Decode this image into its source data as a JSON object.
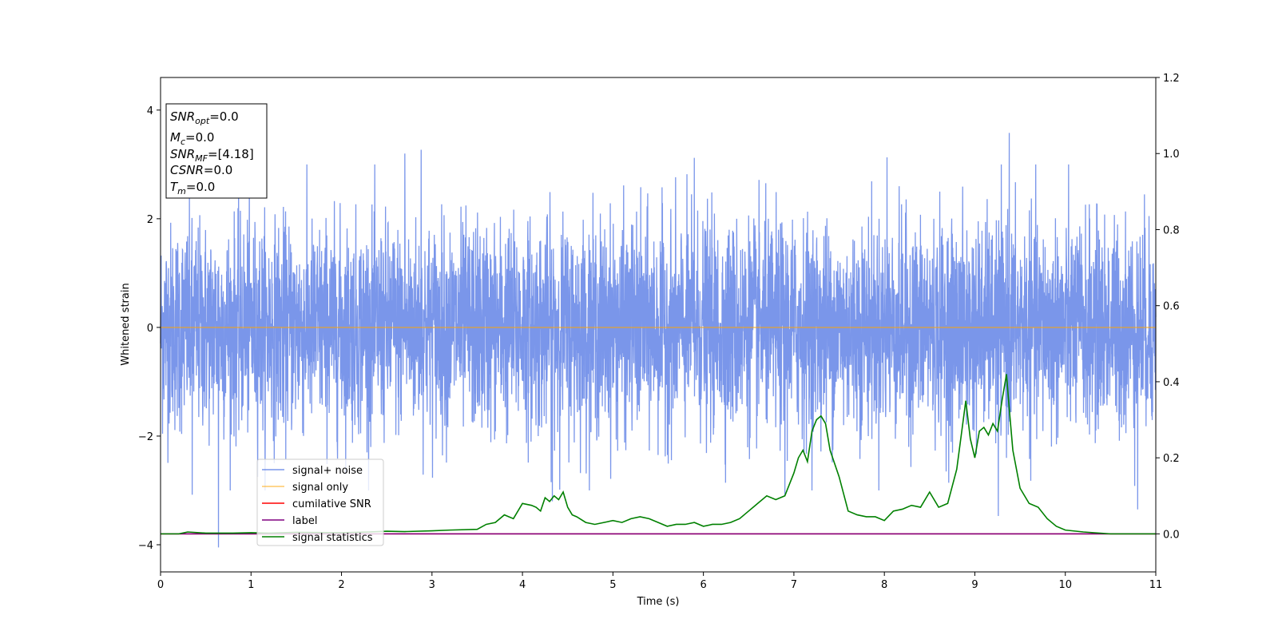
{
  "chart_data": {
    "type": "line",
    "xlabel": "Time (s)",
    "ylabel": "Whitened strain",
    "xlim": [
      0,
      11
    ],
    "ylim": [
      -4.5,
      4.6
    ],
    "y2lim": [
      -0.1,
      1.2
    ],
    "x_ticks": [
      "0",
      "1",
      "2",
      "3",
      "4",
      "5",
      "6",
      "7",
      "8",
      "9",
      "10",
      "11"
    ],
    "y_ticks": [
      "−4",
      "−2",
      "0",
      "2",
      "4"
    ],
    "y2_ticks": [
      "0.0",
      "0.2",
      "0.4",
      "0.6",
      "0.8",
      "1.0",
      "1.2"
    ],
    "y_tick_values": [
      -4,
      -2,
      0,
      2,
      4
    ],
    "y2_tick_values": [
      0.0,
      0.2,
      0.4,
      0.6,
      0.8,
      1.0,
      1.2
    ],
    "grid": false,
    "legend_position": "lower-left",
    "annotation": {
      "lines": [
        {
          "var": "SNR",
          "sub": "opt",
          "value": "=0.0"
        },
        {
          "var": "M",
          "sub": "c",
          "value": "=0.0"
        },
        {
          "var": "SNR",
          "sub": "MF",
          "value": "=[4.18]"
        },
        {
          "var": "CSNR",
          "sub": "",
          "value": "=0.0"
        },
        {
          "var": "T",
          "sub": "m",
          "value": "=0.0"
        }
      ]
    },
    "series": [
      {
        "name": "signal+ noise",
        "axis": "left",
        "color": "#4169e1",
        "description_values": {
          "envelope_min": -4.05,
          "envelope_max": 3.58,
          "typical_abs": 1.3
        },
        "spikes": [
          [
            0.64,
            -4.05
          ],
          [
            9.38,
            3.58
          ],
          [
            4.33,
            -3.2
          ],
          [
            9.26,
            -3.47
          ],
          [
            2.7,
            3.2
          ],
          [
            2.88,
            3.27
          ],
          [
            5.9,
            3.12
          ],
          [
            8.03,
            3.13
          ],
          [
            0.35,
            -3.08
          ],
          [
            10.8,
            -3.35
          ],
          [
            6.9,
            -3.08
          ]
        ]
      },
      {
        "name": "signal only",
        "axis": "left",
        "color": "#ffa500",
        "x": [
          0,
          11
        ],
        "values": [
          0,
          0
        ]
      },
      {
        "name": "cumilative SNR",
        "axis": "right",
        "color": "#ff0000",
        "x": [
          0,
          11
        ],
        "values": [
          0,
          0
        ]
      },
      {
        "name": "label",
        "axis": "right",
        "color": "#800080",
        "x": [
          0,
          11
        ],
        "values": [
          0,
          0
        ]
      },
      {
        "name": "signal statistics",
        "axis": "right",
        "color": "#008000",
        "x": [
          0,
          0.2,
          0.3,
          0.5,
          0.8,
          1.0,
          1.2,
          1.5,
          2.0,
          2.3,
          2.5,
          2.7,
          3.0,
          3.2,
          3.5,
          3.6,
          3.7,
          3.8,
          3.9,
          4.0,
          4.1,
          4.15,
          4.2,
          4.25,
          4.3,
          4.35,
          4.4,
          4.45,
          4.5,
          4.55,
          4.6,
          4.7,
          4.8,
          5.0,
          5.1,
          5.2,
          5.3,
          5.4,
          5.5,
          5.6,
          5.7,
          5.8,
          5.9,
          6.0,
          6.1,
          6.2,
          6.3,
          6.4,
          6.5,
          6.6,
          6.7,
          6.8,
          6.9,
          7.0,
          7.05,
          7.1,
          7.15,
          7.2,
          7.25,
          7.3,
          7.35,
          7.4,
          7.5,
          7.6,
          7.7,
          7.8,
          7.9,
          8.0,
          8.1,
          8.2,
          8.3,
          8.4,
          8.5,
          8.6,
          8.7,
          8.8,
          8.9,
          8.95,
          9.0,
          9.05,
          9.1,
          9.15,
          9.2,
          9.25,
          9.3,
          9.35,
          9.38,
          9.42,
          9.5,
          9.6,
          9.7,
          9.8,
          9.9,
          10.0,
          10.2,
          10.5,
          11.0
        ],
        "values": [
          0.0,
          0.0,
          0.005,
          0.002,
          0.002,
          0.003,
          0.002,
          0.004,
          0.003,
          0.005,
          0.007,
          0.006,
          0.008,
          0.01,
          0.012,
          0.025,
          0.03,
          0.05,
          0.04,
          0.08,
          0.075,
          0.07,
          0.06,
          0.095,
          0.085,
          0.1,
          0.09,
          0.11,
          0.07,
          0.05,
          0.045,
          0.03,
          0.025,
          0.035,
          0.03,
          0.04,
          0.045,
          0.04,
          0.03,
          0.02,
          0.025,
          0.025,
          0.03,
          0.02,
          0.025,
          0.025,
          0.03,
          0.04,
          0.06,
          0.08,
          0.1,
          0.09,
          0.1,
          0.16,
          0.2,
          0.22,
          0.19,
          0.27,
          0.3,
          0.31,
          0.29,
          0.22,
          0.15,
          0.06,
          0.05,
          0.045,
          0.045,
          0.035,
          0.06,
          0.065,
          0.075,
          0.07,
          0.11,
          0.07,
          0.08,
          0.17,
          0.35,
          0.25,
          0.2,
          0.27,
          0.28,
          0.26,
          0.29,
          0.27,
          0.35,
          0.42,
          0.33,
          0.22,
          0.12,
          0.08,
          0.07,
          0.04,
          0.02,
          0.01,
          0.005,
          0.0,
          0.0
        ]
      }
    ]
  }
}
